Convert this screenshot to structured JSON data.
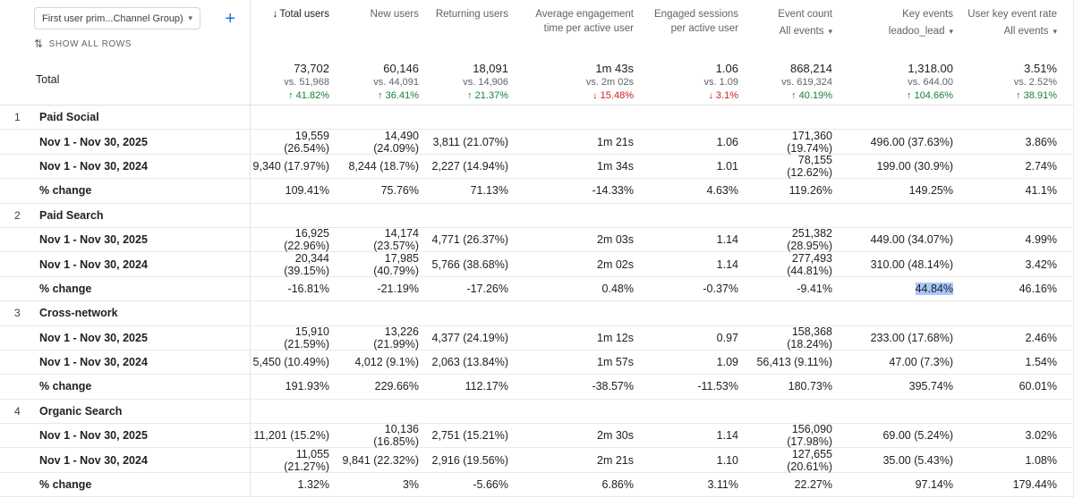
{
  "controls": {
    "dimension_dropdown": "First user prim...Channel Group)",
    "add_label": "+",
    "show_all_rows": "SHOW ALL ROWS"
  },
  "columns": [
    {
      "label": "Total users"
    },
    {
      "label": "New users"
    },
    {
      "label": "Returning users"
    },
    {
      "label": "Average engagement time per active user"
    },
    {
      "label": "Engaged sessions per active user"
    },
    {
      "label": "Event count",
      "filter": "All events"
    },
    {
      "label": "Key events",
      "filter": "leadoo_lead"
    },
    {
      "label": "User key event rate",
      "filter": "All events"
    }
  ],
  "totals": {
    "label": "Total",
    "cells": [
      {
        "value": "73,702",
        "vs": "vs. 51,968",
        "arrow": "↑",
        "delta": "41.82%",
        "dir": "up"
      },
      {
        "value": "60,146",
        "vs": "vs. 44,091",
        "arrow": "↑",
        "delta": "36.41%",
        "dir": "up"
      },
      {
        "value": "18,091",
        "vs": "vs. 14,906",
        "arrow": "↑",
        "delta": "21.37%",
        "dir": "up"
      },
      {
        "value": "1m 43s",
        "vs": "vs. 2m 02s",
        "arrow": "↓",
        "delta": "15.48%",
        "dir": "down"
      },
      {
        "value": "1.06",
        "vs": "vs. 1.09",
        "arrow": "↓",
        "delta": "3.1%",
        "dir": "down"
      },
      {
        "value": "868,214",
        "vs": "vs. 619,324",
        "arrow": "↑",
        "delta": "40.19%",
        "dir": "up"
      },
      {
        "value": "1,318.00",
        "vs": "vs. 644.00",
        "arrow": "↑",
        "delta": "104.66%",
        "dir": "up"
      },
      {
        "value": "3.51%",
        "vs": "vs. 2.52%",
        "arrow": "↑",
        "delta": "38.91%",
        "dir": "up"
      }
    ]
  },
  "highlight": {
    "group": 1,
    "row": 2,
    "col": 6
  },
  "groups": [
    {
      "index": "1",
      "name": "Paid Social",
      "rows": [
        {
          "label": "Nov 1 - Nov 30, 2025",
          "cells": [
            "19,559 (26.54%)",
            "14,490 (24.09%)",
            "3,811 (21.07%)",
            "1m 21s",
            "1.06",
            "171,360 (19.74%)",
            "496.00 (37.63%)",
            "3.86%"
          ]
        },
        {
          "label": "Nov 1 - Nov 30, 2024",
          "cells": [
            "9,340 (17.97%)",
            "8,244 (18.7%)",
            "2,227 (14.94%)",
            "1m 34s",
            "1.01",
            "78,155 (12.62%)",
            "199.00 (30.9%)",
            "2.74%"
          ]
        },
        {
          "label": "% change",
          "cells": [
            "109.41%",
            "75.76%",
            "71.13%",
            "-14.33%",
            "4.63%",
            "119.26%",
            "149.25%",
            "41.1%"
          ]
        }
      ]
    },
    {
      "index": "2",
      "name": "Paid Search",
      "rows": [
        {
          "label": "Nov 1 - Nov 30, 2025",
          "cells": [
            "16,925 (22.96%)",
            "14,174 (23.57%)",
            "4,771 (26.37%)",
            "2m 03s",
            "1.14",
            "251,382 (28.95%)",
            "449.00 (34.07%)",
            "4.99%"
          ]
        },
        {
          "label": "Nov 1 - Nov 30, 2024",
          "cells": [
            "20,344 (39.15%)",
            "17,985 (40.79%)",
            "5,766 (38.68%)",
            "2m 02s",
            "1.14",
            "277,493 (44.81%)",
            "310.00 (48.14%)",
            "3.42%"
          ]
        },
        {
          "label": "% change",
          "cells": [
            "-16.81%",
            "-21.19%",
            "-17.26%",
            "0.48%",
            "-0.37%",
            "-9.41%",
            "44.84%",
            "46.16%"
          ]
        }
      ]
    },
    {
      "index": "3",
      "name": "Cross-network",
      "rows": [
        {
          "label": "Nov 1 - Nov 30, 2025",
          "cells": [
            "15,910 (21.59%)",
            "13,226 (21.99%)",
            "4,377 (24.19%)",
            "1m 12s",
            "0.97",
            "158,368 (18.24%)",
            "233.00 (17.68%)",
            "2.46%"
          ]
        },
        {
          "label": "Nov 1 - Nov 30, 2024",
          "cells": [
            "5,450 (10.49%)",
            "4,012 (9.1%)",
            "2,063 (13.84%)",
            "1m 57s",
            "1.09",
            "56,413 (9.11%)",
            "47.00 (7.3%)",
            "1.54%"
          ]
        },
        {
          "label": "% change",
          "cells": [
            "191.93%",
            "229.66%",
            "112.17%",
            "-38.57%",
            "-11.53%",
            "180.73%",
            "395.74%",
            "60.01%"
          ]
        }
      ]
    },
    {
      "index": "4",
      "name": "Organic Search",
      "rows": [
        {
          "label": "Nov 1 - Nov 30, 2025",
          "cells": [
            "11,201 (15.2%)",
            "10,136 (16.85%)",
            "2,751 (15.21%)",
            "2m 30s",
            "1.14",
            "156,090 (17.98%)",
            "69.00 (5.24%)",
            "3.02%"
          ]
        },
        {
          "label": "Nov 1 - Nov 30, 2024",
          "cells": [
            "11,055 (21.27%)",
            "9,841 (22.32%)",
            "2,916 (19.56%)",
            "2m 21s",
            "1.10",
            "127,655 (20.61%)",
            "35.00 (5.43%)",
            "1.08%"
          ]
        },
        {
          "label": "% change",
          "cells": [
            "1.32%",
            "3%",
            "-5.66%",
            "6.86%",
            "3.11%",
            "22.27%",
            "97.14%",
            "179.44%"
          ]
        }
      ]
    }
  ]
}
